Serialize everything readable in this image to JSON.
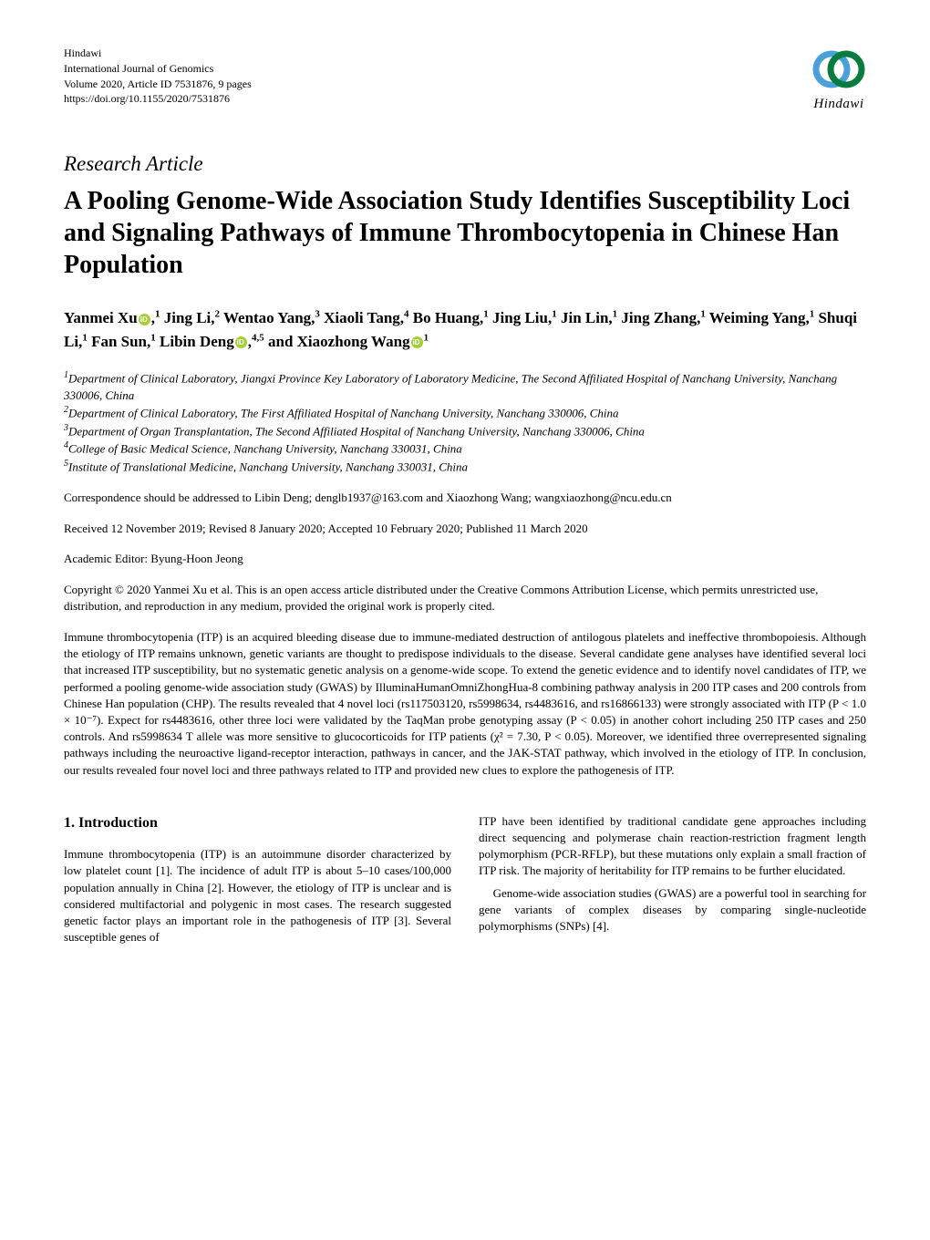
{
  "journal": {
    "publisher": "Hindawi",
    "name": "International Journal of Genomics",
    "volume_line": "Volume 2020, Article ID 7531876, 9 pages",
    "doi": "https://doi.org/10.1155/2020/7531876",
    "logo_text": "Hindawi",
    "logo_colors": {
      "ring1": "#4aa0d8",
      "ring2": "#0a7b3e"
    }
  },
  "article": {
    "type": "Research Article",
    "title": "A Pooling Genome-Wide Association Study Identifies Susceptibility Loci and Signaling Pathways of Immune Thrombocytopenia in Chinese Han Population"
  },
  "authors_html": "Yanmei Xu<span class='orcid' data-name='orcid-icon' data-interactable='false'></span>,<sup>1</sup> Jing Li,<sup>2</sup> Wentao Yang,<sup>3</sup> Xiaoli Tang,<sup>4</sup> Bo Huang,<sup>1</sup> Jing Liu,<sup>1</sup> Jin Lin,<sup>1</sup> Jing Zhang,<sup>1</sup> Weiming Yang,<sup>1</sup> Shuqi Li,<sup>1</sup> Fan Sun,<sup>1</sup> Libin Deng<span class='orcid' data-name='orcid-icon' data-interactable='false'></span>,<sup>4,5</sup> and Xiaozhong Wang<span class='orcid' data-name='orcid-icon' data-interactable='false'></span><sup>1</sup>",
  "affiliations": {
    "a1": "Department of Clinical Laboratory, Jiangxi Province Key Laboratory of Laboratory Medicine, The Second Affiliated Hospital of Nanchang University, Nanchang 330006, China",
    "a2": "Department of Clinical Laboratory, The First Affiliated Hospital of Nanchang University, Nanchang 330006, China",
    "a3": "Department of Organ Transplantation, The Second Affiliated Hospital of Nanchang University, Nanchang 330006, China",
    "a4": "College of Basic Medical Science, Nanchang University, Nanchang 330031, China",
    "a5": "Institute of Translational Medicine, Nanchang University, Nanchang 330031, China"
  },
  "correspondence": "Correspondence should be addressed to Libin Deng; denglb1937@163.com and Xiaozhong Wang; wangxiaozhong@ncu.edu.cn",
  "dates": "Received 12 November 2019; Revised 8 January 2020; Accepted 10 February 2020; Published 11 March 2020",
  "editor": "Academic Editor: Byung-Hoon Jeong",
  "copyright": "Copyright © 2020 Yanmei Xu et al. This is an open access article distributed under the Creative Commons Attribution License, which permits unrestricted use, distribution, and reproduction in any medium, provided the original work is properly cited.",
  "abstract": "Immune thrombocytopenia (ITP) is an acquired bleeding disease due to immune-mediated destruction of antilogous platelets and ineffective thrombopoiesis. Although the etiology of ITP remains unknown, genetic variants are thought to predispose individuals to the disease. Several candidate gene analyses have identified several loci that increased ITP susceptibility, but no systematic genetic analysis on a genome-wide scope. To extend the genetic evidence and to identify novel candidates of ITP, we performed a pooling genome-wide association study (GWAS) by IlluminaHumanOmniZhongHua-8 combining pathway analysis in 200 ITP cases and 200 controls from Chinese Han population (CHP). The results revealed that 4 novel loci (rs117503120, rs5998634, rs4483616, and rs16866133) were strongly associated with ITP (P < 1.0 × 10⁻⁷). Expect for rs4483616, other three loci were validated by the TaqMan probe genotyping assay (P < 0.05) in another cohort including 250 ITP cases and 250 controls. And rs5998634 T allele was more sensitive to glucocorticoids for ITP patients (χ² = 7.30, P < 0.05). Moreover, we identified three overrepresented signaling pathways including the neuroactive ligand-receptor interaction, pathways in cancer, and the JAK-STAT pathway, which involved in the etiology of ITP. In conclusion, our results revealed four novel loci and three pathways related to ITP and provided new clues to explore the pathogenesis of ITP.",
  "section1": {
    "heading": "1. Introduction",
    "col1": "Immune thrombocytopenia (ITP) is an autoimmune disorder characterized by low platelet count [1]. The incidence of adult ITP is about 5–10 cases/100,000 population annually in China [2]. However, the etiology of ITP is unclear and is considered multifactorial and polygenic in most cases. The research suggested genetic factor plays an important role in the pathogenesis of ITP [3]. Several susceptible genes of",
    "col2_p1": "ITP have been identified by traditional candidate gene approaches including direct sequencing and polymerase chain reaction-restriction fragment length polymorphism (PCR-RFLP), but these mutations only explain a small fraction of ITP risk. The majority of heritability for ITP remains to be further elucidated.",
    "col2_p2": "Genome-wide association studies (GWAS) are a powerful tool in searching for gene variants of complex diseases by comparing single-nucleotide polymorphisms (SNPs) [4]."
  },
  "colors": {
    "text": "#000000",
    "background": "#ffffff",
    "orcid": "#a6ce39"
  }
}
